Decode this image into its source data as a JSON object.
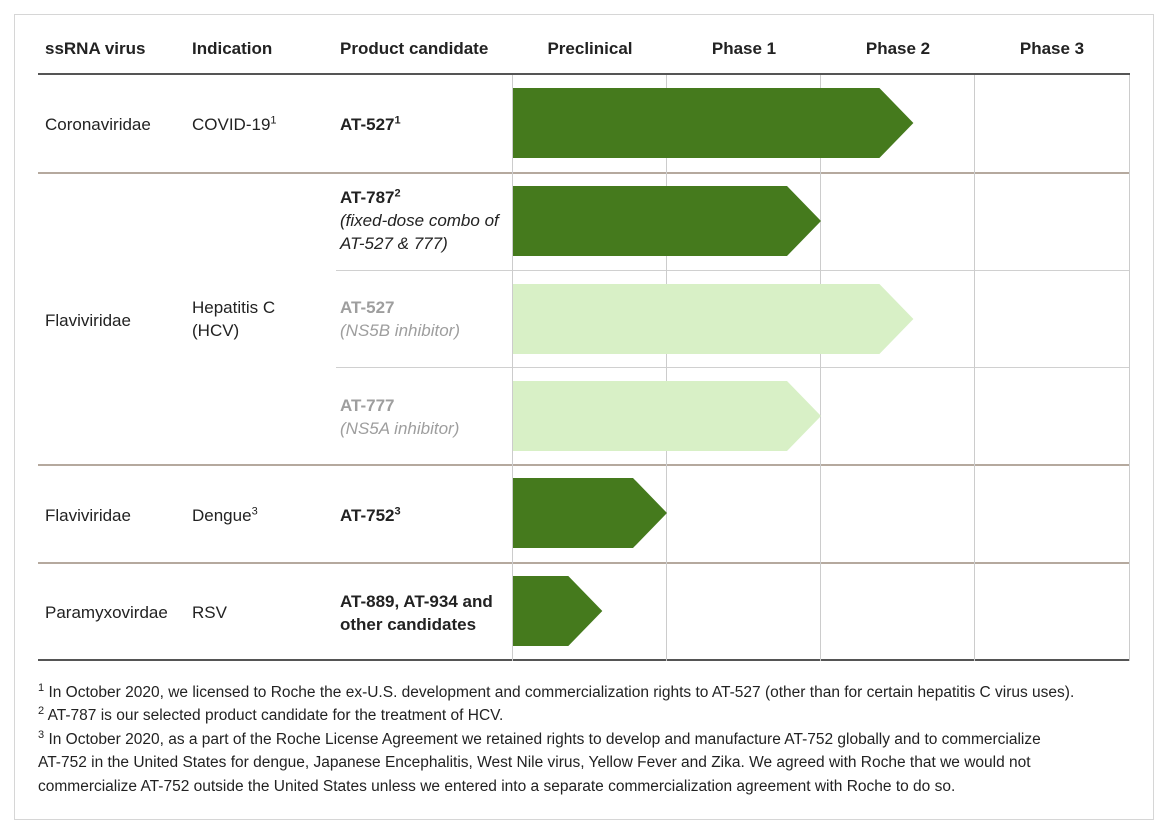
{
  "headers": {
    "virus": "ssRNA virus",
    "indication": "Indication",
    "candidate": "Product candidate",
    "phases": [
      "Preclinical",
      "Phase 1",
      "Phase 2",
      "Phase 3"
    ]
  },
  "rows": [
    {
      "virus": "Coronaviridae",
      "indication": "COVID-19",
      "indication_sup": "1",
      "candidate": "AT-527",
      "candidate_sup": "1"
    },
    {
      "virus": "Flaviviridae",
      "indication_line1": "Hepatitis C",
      "indication_line2": "(HCV)",
      "candidates": [
        {
          "name": "AT-787",
          "sup": "2",
          "desc_line1": "(fixed-dose combo of",
          "desc_line2": "AT-527 & 777)"
        },
        {
          "name": "AT-527",
          "desc": "(NS5B inhibitor)"
        },
        {
          "name": "AT-777",
          "desc": "(NS5A inhibitor)"
        }
      ]
    },
    {
      "virus": "Flaviviridae",
      "indication": "Dengue",
      "indication_sup": "3",
      "candidate": "AT-752",
      "candidate_sup": "3"
    },
    {
      "virus": "Paramyxovirdae",
      "indication": "RSV",
      "candidate_line1": "AT-889, AT-934 and",
      "candidate_line2": "other candidates"
    }
  ],
  "chart_data": {
    "type": "bar",
    "orientation": "horizontal",
    "stages": [
      "Preclinical",
      "Phase 1",
      "Phase 2",
      "Phase 3"
    ],
    "note": "progress measured in stage units (0 = start of Preclinical, 4 = end of Phase 3)",
    "bars": [
      {
        "candidate": "AT-527 (COVID-19)",
        "progress": 2.6,
        "status": "active"
      },
      {
        "candidate": "AT-787",
        "progress": 2.0,
        "status": "active"
      },
      {
        "candidate": "AT-527 (NS5B inhibitor)",
        "progress": 2.6,
        "status": "prior"
      },
      {
        "candidate": "AT-777 (NS5A inhibitor)",
        "progress": 2.0,
        "status": "prior"
      },
      {
        "candidate": "AT-752",
        "progress": 1.0,
        "status": "active"
      },
      {
        "candidate": "AT-889, AT-934 and other candidates",
        "progress": 0.58,
        "status": "active"
      }
    ],
    "colors": {
      "active": "#457a1d",
      "prior": "#d8f0c6"
    }
  },
  "footnotes": [
    {
      "sup": "1",
      "text": "In October 2020, we licensed to Roche the ex-U.S. development and commercialization rights to AT-527 (other than for certain hepatitis C virus uses)."
    },
    {
      "sup": "2",
      "text": "AT-787 is our selected product candidate for the treatment of HCV."
    },
    {
      "sup": "3",
      "text": "In October 2020, as a part of the Roche License Agreement we retained rights to develop and manufacture AT-752 globally and to commercialize"
    },
    {
      "text": "AT-752 in the United States for dengue, Japanese Encephalitis, West Nile virus, Yellow Fever and Zika. We agreed with Roche that we would not"
    },
    {
      "text": "commercialize AT-752 outside the United States unless we entered into a separate commercialization agreement with Roche to do so."
    }
  ]
}
